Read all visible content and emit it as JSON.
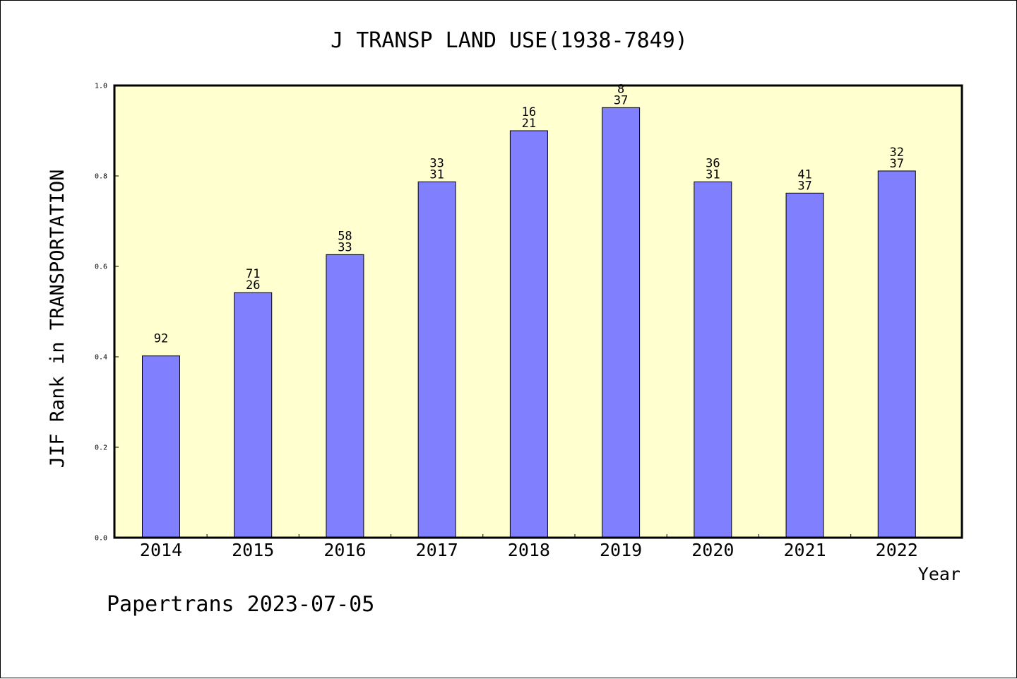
{
  "colors": {
    "plot_background": "#ffffd0",
    "bar_fill": "#8080ff",
    "bar_stroke": "#000000",
    "axis": "#000000"
  },
  "footer": "Papertrans 2023-07-05",
  "chart_data": {
    "type": "bar",
    "title": "J TRANSP LAND USE(1938-7849)",
    "xlabel": "Year",
    "ylabel": "JIF Rank in TRANSPORTATION",
    "ylim": [
      0,
      1.0
    ],
    "yticks": [
      "0.0",
      "0.2",
      "0.4",
      "0.6",
      "0.8",
      "1.0"
    ],
    "grid": false,
    "legend": "none",
    "categories": [
      "2014",
      "2015",
      "2016",
      "2017",
      "2018",
      "2019",
      "2020",
      "2021",
      "2022"
    ],
    "values": [
      0.402,
      0.542,
      0.626,
      0.787,
      0.9,
      0.951,
      0.787,
      0.762,
      0.811
    ],
    "labels_top": [
      "",
      "71",
      "58",
      "33",
      "16",
      "8",
      "36",
      "41",
      "32"
    ],
    "labels_bottom": [
      "92",
      "26",
      "33",
      "31",
      "21",
      "37",
      "31",
      "37",
      "37"
    ]
  }
}
